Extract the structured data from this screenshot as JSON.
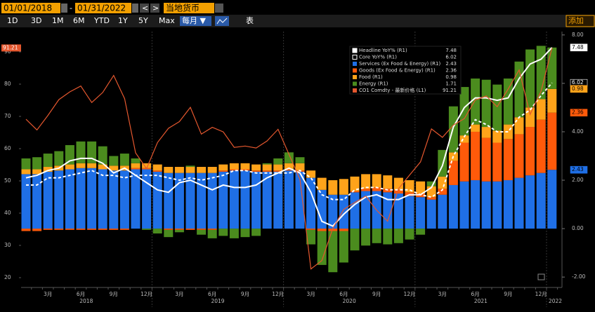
{
  "toolbar": {
    "start_date": "01/01/2018",
    "end_date": "01/31/2022",
    "currency": "当地货币",
    "ranges": [
      "1D",
      "3D",
      "1M",
      "6M",
      "YTD",
      "1Y",
      "5Y",
      "Max"
    ],
    "frequency": "每月 ▼",
    "table": "表",
    "add": "添加"
  },
  "chart_data": {
    "type": "bar",
    "stacked": true,
    "categories": [
      null,
      null,
      "3月",
      null,
      null,
      "6月",
      null,
      null,
      "9月",
      null,
      null,
      "12月",
      null,
      null,
      "3月",
      null,
      null,
      "6月",
      null,
      null,
      "9月",
      null,
      null,
      "12月",
      null,
      null,
      "3月",
      null,
      null,
      "6月",
      null,
      null,
      "9月",
      null,
      null,
      "12月",
      null,
      null,
      "3月",
      null,
      null,
      "6月",
      null,
      null,
      "9月",
      null,
      null,
      "12月",
      null
    ],
    "years": [
      "2018",
      "2019",
      "2020",
      "2021",
      "2022"
    ],
    "ylim": [
      16.96,
      96.3
    ],
    "yticks": [
      20,
      30,
      40,
      50,
      60,
      70,
      80,
      90
    ],
    "y2lim": [
      -2.43,
      8.14
    ],
    "y2ticks": [
      {
        "value": -2,
        "label": "-2.00"
      },
      {
        "value": 0,
        "label": "0.00"
      },
      {
        "value": 2,
        "label": "2.00"
      },
      {
        "value": 4,
        "label": "4.00"
      },
      {
        "value": 6,
        "label": "6.00"
      },
      {
        "value": 8,
        "label": "8.00"
      }
    ],
    "grid": false,
    "series": [
      {
        "name": "Headline YoY% (R1)",
        "kind": "line",
        "axis": "y2",
        "color": "#ffffff",
        "dashed": false,
        "values": [
          2.1,
          2.2,
          2.4,
          2.5,
          2.8,
          2.9,
          2.9,
          2.7,
          2.3,
          2.5,
          2.2,
          1.9,
          1.6,
          1.5,
          1.9,
          2.0,
          1.8,
          1.6,
          1.8,
          1.7,
          1.7,
          1.8,
          2.1,
          2.3,
          2.5,
          2.3,
          1.5,
          0.3,
          0.1,
          0.6,
          1.0,
          1.3,
          1.4,
          1.2,
          1.2,
          1.4,
          1.4,
          1.7,
          2.6,
          4.2,
          5.0,
          5.4,
          5.4,
          5.3,
          5.4,
          6.2,
          6.8,
          7.0,
          7.48
        ]
      },
      {
        "name": "Core YoY% (R1)",
        "kind": "line",
        "axis": "y2",
        "color": "#ffffff",
        "dashed": true,
        "values": [
          1.8,
          1.8,
          2.1,
          2.1,
          2.2,
          2.3,
          2.4,
          2.2,
          2.2,
          2.1,
          2.2,
          2.2,
          2.2,
          2.1,
          2.0,
          2.1,
          2.0,
          2.1,
          2.2,
          2.4,
          2.4,
          2.3,
          2.3,
          2.3,
          2.3,
          2.4,
          2.1,
          1.4,
          1.2,
          1.2,
          1.6,
          1.7,
          1.7,
          1.6,
          1.6,
          1.6,
          1.4,
          1.3,
          1.6,
          3.0,
          3.8,
          4.5,
          4.3,
          4.0,
          4.0,
          4.6,
          4.9,
          5.5,
          6.02
        ]
      },
      {
        "name": "Services (Ex Food & Energy) (R1)",
        "kind": "bar",
        "axis": "y2",
        "color": "#1f6fe6",
        "values": [
          2.25,
          2.25,
          2.35,
          2.4,
          2.45,
          2.5,
          2.5,
          2.45,
          2.4,
          2.4,
          2.45,
          2.45,
          2.35,
          2.3,
          2.3,
          2.3,
          2.3,
          2.3,
          2.35,
          2.4,
          2.4,
          2.35,
          2.35,
          2.35,
          2.4,
          2.35,
          2.1,
          1.6,
          1.4,
          1.4,
          1.5,
          1.55,
          1.55,
          1.5,
          1.45,
          1.35,
          1.3,
          1.2,
          1.4,
          1.8,
          1.95,
          2.0,
          1.95,
          1.95,
          2.0,
          2.1,
          2.2,
          2.3,
          2.43
        ]
      },
      {
        "name": "Goods (Ex Food & Energy) (R1)",
        "kind": "bar",
        "axis": "y2",
        "color": "#ff5a0a",
        "values": [
          -0.1,
          -0.1,
          -0.05,
          -0.05,
          -0.05,
          -0.05,
          -0.05,
          -0.05,
          -0.05,
          -0.05,
          0.05,
          0.05,
          0.05,
          -0.05,
          -0.05,
          -0.05,
          -0.05,
          -0.05,
          0.05,
          0.05,
          0.05,
          0.05,
          0.05,
          0.05,
          0.05,
          0.05,
          -0.05,
          -0.1,
          -0.1,
          -0.1,
          0.05,
          0.1,
          0.15,
          0.15,
          0.15,
          0.15,
          0.15,
          0.1,
          0.25,
          1.0,
          1.6,
          2.0,
          1.8,
          1.6,
          1.7,
          1.8,
          2.0,
          2.2,
          2.36
        ]
      },
      {
        "name": "Food (R1)",
        "kind": "bar",
        "axis": "y2",
        "color": "#ffa31a",
        "values": [
          0.2,
          0.2,
          0.2,
          0.2,
          0.2,
          0.2,
          0.2,
          0.2,
          0.2,
          0.2,
          0.2,
          0.2,
          0.25,
          0.25,
          0.25,
          0.25,
          0.25,
          0.25,
          0.25,
          0.25,
          0.25,
          0.25,
          0.25,
          0.25,
          0.25,
          0.3,
          0.3,
          0.5,
          0.6,
          0.65,
          0.6,
          0.6,
          0.55,
          0.55,
          0.5,
          0.5,
          0.5,
          0.45,
          0.5,
          0.35,
          0.3,
          0.3,
          0.45,
          0.5,
          0.6,
          0.7,
          0.8,
          0.85,
          0.98
        ]
      },
      {
        "name": "Energy (R1)",
        "kind": "bar",
        "axis": "y2",
        "color": "#4b8c1e",
        "values": [
          0.45,
          0.5,
          0.55,
          0.6,
          0.8,
          0.9,
          0.9,
          0.75,
          0.4,
          0.5,
          0.2,
          -0.05,
          -0.2,
          -0.3,
          -0.1,
          0.05,
          -0.2,
          -0.35,
          -0.3,
          -0.4,
          -0.35,
          -0.3,
          0.05,
          0.25,
          0.45,
          0.25,
          -0.6,
          -1.4,
          -1.7,
          -1.3,
          -0.9,
          -0.7,
          -0.6,
          -0.65,
          -0.6,
          -0.45,
          -0.25,
          0.2,
          1.1,
          1.9,
          2.0,
          1.9,
          1.95,
          1.9,
          1.9,
          2.3,
          2.4,
          2.2,
          1.71
        ]
      },
      {
        "name": "CO1 Comdty - 最新价格 (L1)",
        "kind": "line",
        "axis": "y",
        "color": "#e4572e",
        "dashed": false,
        "values": [
          69.1,
          65.8,
          70.3,
          75.2,
          77.6,
          79.4,
          74.3,
          77.4,
          82.7,
          75.5,
          58.7,
          53.8,
          61.9,
          66.3,
          68.4,
          72.8,
          64.5,
          66.6,
          65.2,
          60.4,
          60.8,
          60.2,
          62.4,
          66.0,
          58.2,
          50.5,
          22.7,
          25.3,
          35.3,
          41.2,
          43.3,
          45.3,
          40.9,
          37.5,
          47.6,
          51.8,
          55.9,
          66.1,
          63.5,
          67.3,
          69.3,
          75.1,
          76.3,
          72.99,
          78.5,
          84.4,
          70.6,
          77.8,
          91.21
        ]
      }
    ]
  }
}
